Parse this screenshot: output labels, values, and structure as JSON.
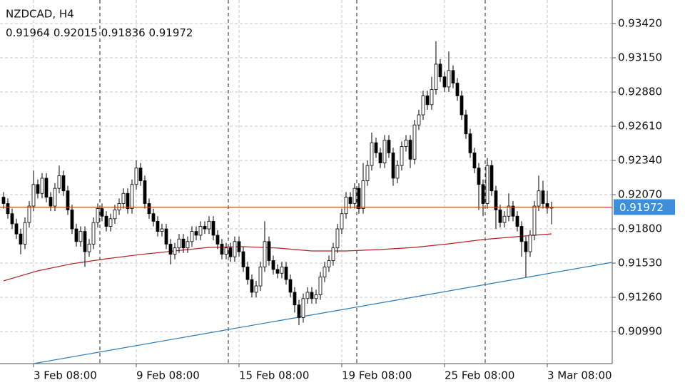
{
  "chart_data": {
    "type": "candlestick",
    "title": "NZDCAD, H4",
    "open": [
      0.9205,
      0.92,
      0.9192,
      0.9184,
      0.9176,
      0.9168,
      0.9185,
      0.9198,
      0.9215,
      0.9208,
      0.922,
      0.9205,
      0.9198,
      0.9212,
      0.9222,
      0.921,
      0.9195,
      0.918,
      0.917,
      0.9178,
      0.9162,
      0.9168,
      0.9185,
      0.9196,
      0.919,
      0.9182,
      0.9188,
      0.9195,
      0.92,
      0.9208,
      0.9196,
      0.9215,
      0.9228,
      0.9218,
      0.92,
      0.9192,
      0.9186,
      0.9178,
      0.918,
      0.9168,
      0.916,
      0.9165,
      0.9172,
      0.9165,
      0.917,
      0.9178,
      0.9175,
      0.9182,
      0.918,
      0.9186,
      0.9175,
      0.9168,
      0.916,
      0.9165,
      0.9158,
      0.917,
      0.9162,
      0.915,
      0.914,
      0.913,
      0.9135,
      0.915,
      0.917,
      0.9155,
      0.9148,
      0.9145,
      0.915,
      0.914,
      0.913,
      0.912,
      0.911,
      0.9125,
      0.913,
      0.9125,
      0.9128,
      0.9142,
      0.915,
      0.9155,
      0.9165,
      0.918,
      0.9192,
      0.9205,
      0.92,
      0.9212,
      0.9196,
      0.9218,
      0.923,
      0.9248,
      0.924,
      0.9232,
      0.925,
      0.924,
      0.922,
      0.923,
      0.9245,
      0.925,
      0.9235,
      0.9262,
      0.927,
      0.9285,
      0.9278,
      0.929,
      0.931,
      0.93,
      0.9292,
      0.9305,
      0.9295,
      0.9285,
      0.927,
      0.9255,
      0.924,
      0.9228,
      0.9215,
      0.92,
      0.923,
      0.921,
      0.9195,
      0.9185,
      0.919,
      0.9198,
      0.919,
      0.9182,
      0.917,
      0.9162,
      0.9175,
      0.9198,
      0.921,
      0.92,
      0.91964
    ],
    "high": [
      0.9209,
      0.9204,
      0.9196,
      0.9188,
      0.918,
      0.9189,
      0.9202,
      0.9226,
      0.9219,
      0.9224,
      0.9224,
      0.9209,
      0.9216,
      0.923,
      0.9226,
      0.9214,
      0.9199,
      0.9184,
      0.9182,
      0.9182,
      0.9172,
      0.9189,
      0.92,
      0.92,
      0.9194,
      0.9192,
      0.9199,
      0.9204,
      0.9212,
      0.9212,
      0.9219,
      0.9234,
      0.9232,
      0.9222,
      0.9204,
      0.9196,
      0.919,
      0.9184,
      0.9184,
      0.9172,
      0.9169,
      0.9176,
      0.9176,
      0.9174,
      0.9182,
      0.9182,
      0.9186,
      0.9186,
      0.919,
      0.919,
      0.9179,
      0.9172,
      0.9169,
      0.9169,
      0.9174,
      0.9174,
      0.9166,
      0.9154,
      0.9144,
      0.9139,
      0.9154,
      0.9186,
      0.9174,
      0.9159,
      0.9152,
      0.9154,
      0.9154,
      0.9144,
      0.9134,
      0.9124,
      0.9129,
      0.9134,
      0.9134,
      0.9132,
      0.9146,
      0.9154,
      0.9159,
      0.9169,
      0.9184,
      0.9196,
      0.9209,
      0.9209,
      0.9216,
      0.9216,
      0.9232,
      0.9234,
      0.9256,
      0.9252,
      0.9244,
      0.9254,
      0.9254,
      0.9244,
      0.9234,
      0.9249,
      0.9254,
      0.9254,
      0.9266,
      0.9274,
      0.9289,
      0.9289,
      0.93,
      0.9328,
      0.9314,
      0.9304,
      0.932,
      0.9309,
      0.9299,
      0.9289,
      0.9274,
      0.9259,
      0.9244,
      0.9232,
      0.9219,
      0.9236,
      0.9234,
      0.9214,
      0.9199,
      0.9194,
      0.9208,
      0.9202,
      0.9194,
      0.9186,
      0.9174,
      0.9179,
      0.9202,
      0.9222,
      0.9218,
      0.921,
      0.92015
    ],
    "low": [
      0.9196,
      0.9188,
      0.918,
      0.9172,
      0.916,
      0.9164,
      0.9181,
      0.9194,
      0.9204,
      0.9204,
      0.9201,
      0.9194,
      0.9194,
      0.9208,
      0.9206,
      0.9191,
      0.9176,
      0.9166,
      0.9166,
      0.915,
      0.9158,
      0.9164,
      0.9181,
      0.9186,
      0.9178,
      0.9178,
      0.9184,
      0.9191,
      0.9196,
      0.9192,
      0.9192,
      0.9211,
      0.9214,
      0.9196,
      0.9188,
      0.9182,
      0.9174,
      0.9174,
      0.9164,
      0.9152,
      0.9156,
      0.9161,
      0.9161,
      0.9161,
      0.9166,
      0.9171,
      0.9171,
      0.9176,
      0.9176,
      0.9171,
      0.9164,
      0.9156,
      0.9156,
      0.9154,
      0.9154,
      0.9158,
      0.9146,
      0.9136,
      0.9126,
      0.9126,
      0.9131,
      0.9146,
      0.9151,
      0.9144,
      0.9141,
      0.9141,
      0.9136,
      0.9126,
      0.9114,
      0.9104,
      0.9106,
      0.9121,
      0.9121,
      0.9121,
      0.9124,
      0.9138,
      0.9146,
      0.9151,
      0.9161,
      0.9176,
      0.9188,
      0.9196,
      0.9196,
      0.9192,
      0.9192,
      0.9214,
      0.9226,
      0.9236,
      0.9228,
      0.9228,
      0.9236,
      0.9214,
      0.9216,
      0.9226,
      0.9241,
      0.9228,
      0.9231,
      0.9258,
      0.9266,
      0.9274,
      0.9274,
      0.9286,
      0.9296,
      0.9288,
      0.9288,
      0.9291,
      0.9281,
      0.9266,
      0.9251,
      0.9236,
      0.9224,
      0.9195,
      0.919,
      0.9196,
      0.9206,
      0.918,
      0.9181,
      0.9181,
      0.9186,
      0.9186,
      0.9178,
      0.9158,
      0.9142,
      0.9158,
      0.9171,
      0.9194,
      0.9196,
      0.9192,
      0.91836
    ],
    "close": [
      0.92,
      0.9192,
      0.9184,
      0.9176,
      0.9168,
      0.9185,
      0.9198,
      0.9215,
      0.9208,
      0.922,
      0.9205,
      0.9198,
      0.9212,
      0.9222,
      0.921,
      0.9195,
      0.918,
      0.917,
      0.9178,
      0.9162,
      0.9168,
      0.9185,
      0.9196,
      0.919,
      0.9182,
      0.9188,
      0.9195,
      0.92,
      0.9208,
      0.9196,
      0.9215,
      0.9228,
      0.9218,
      0.92,
      0.9192,
      0.9186,
      0.9178,
      0.918,
      0.9168,
      0.916,
      0.9165,
      0.9172,
      0.9165,
      0.917,
      0.9178,
      0.9175,
      0.9182,
      0.918,
      0.9186,
      0.9175,
      0.9168,
      0.916,
      0.9165,
      0.9158,
      0.917,
      0.9162,
      0.915,
      0.914,
      0.913,
      0.9135,
      0.915,
      0.917,
      0.9155,
      0.9148,
      0.9145,
      0.915,
      0.914,
      0.913,
      0.912,
      0.911,
      0.9125,
      0.913,
      0.9125,
      0.9128,
      0.9142,
      0.915,
      0.9155,
      0.9165,
      0.918,
      0.9192,
      0.9205,
      0.92,
      0.9212,
      0.9196,
      0.9218,
      0.923,
      0.9248,
      0.924,
      0.9232,
      0.925,
      0.924,
      0.922,
      0.923,
      0.9245,
      0.925,
      0.9235,
      0.9262,
      0.927,
      0.9285,
      0.9278,
      0.929,
      0.931,
      0.93,
      0.9292,
      0.9305,
      0.9295,
      0.9285,
      0.927,
      0.9255,
      0.924,
      0.9228,
      0.9215,
      0.92,
      0.923,
      0.921,
      0.9195,
      0.9185,
      0.919,
      0.9198,
      0.919,
      0.9182,
      0.917,
      0.9162,
      0.9175,
      0.9198,
      0.921,
      0.92,
      0.91964,
      0.91972
    ],
    "up_color": "#ffffff",
    "down_color": "#000000",
    "xlim": [
      -0.83,
      142.17
    ],
    "xticks": [
      {
        "value": 7,
        "label": "3 Feb 08:00"
      },
      {
        "value": 31,
        "label": "9 Feb 08:00"
      },
      {
        "value": 55,
        "label": "15 Feb 08:00"
      },
      {
        "value": 79,
        "label": "19 Feb 08:00"
      },
      {
        "value": 103,
        "label": "25 Feb 08:00"
      },
      {
        "value": 127,
        "label": "3 Mar 08:00"
      }
    ],
    "separators": [
      22.5,
      52.5,
      82.5,
      112.5
    ],
    "ylim": [
      0.90737,
      0.93606
    ],
    "yticks": [
      {
        "value": 0.9342,
        "label": "0.93420"
      },
      {
        "value": 0.9315,
        "label": "0.93150"
      },
      {
        "value": 0.9288,
        "label": "0.92880"
      },
      {
        "value": 0.9261,
        "label": "0.92610"
      },
      {
        "value": 0.9234,
        "label": "0.92340"
      },
      {
        "value": 0.9207,
        "label": "0.92070"
      },
      {
        "value": 0.918,
        "label": "0.91800"
      },
      {
        "value": 0.9153,
        "label": "0.91530"
      },
      {
        "value": 0.9126,
        "label": "0.91260"
      },
      {
        "value": 0.9099,
        "label": "0.90990"
      }
    ],
    "grid": true,
    "moving_average": {
      "color": "#b22222",
      "x": [
        0,
        8,
        16,
        24,
        32,
        40,
        48,
        56,
        64,
        72,
        80,
        88,
        96,
        104,
        112,
        120,
        128
      ],
      "values": [
        0.9139,
        0.91469,
        0.91525,
        0.91564,
        0.91598,
        0.91626,
        0.91654,
        0.9166,
        0.91649,
        0.91626,
        0.91626,
        0.91637,
        0.91654,
        0.91682,
        0.91716,
        0.91739,
        0.91761
      ]
    },
    "trendline": {
      "color": "#2a7ab8",
      "x": [
        7,
        142
      ],
      "values": [
        0.90737,
        0.91535
      ]
    },
    "price_line_color": "#c0392b",
    "price_label_color": "#3d8fdb"
  }
}
